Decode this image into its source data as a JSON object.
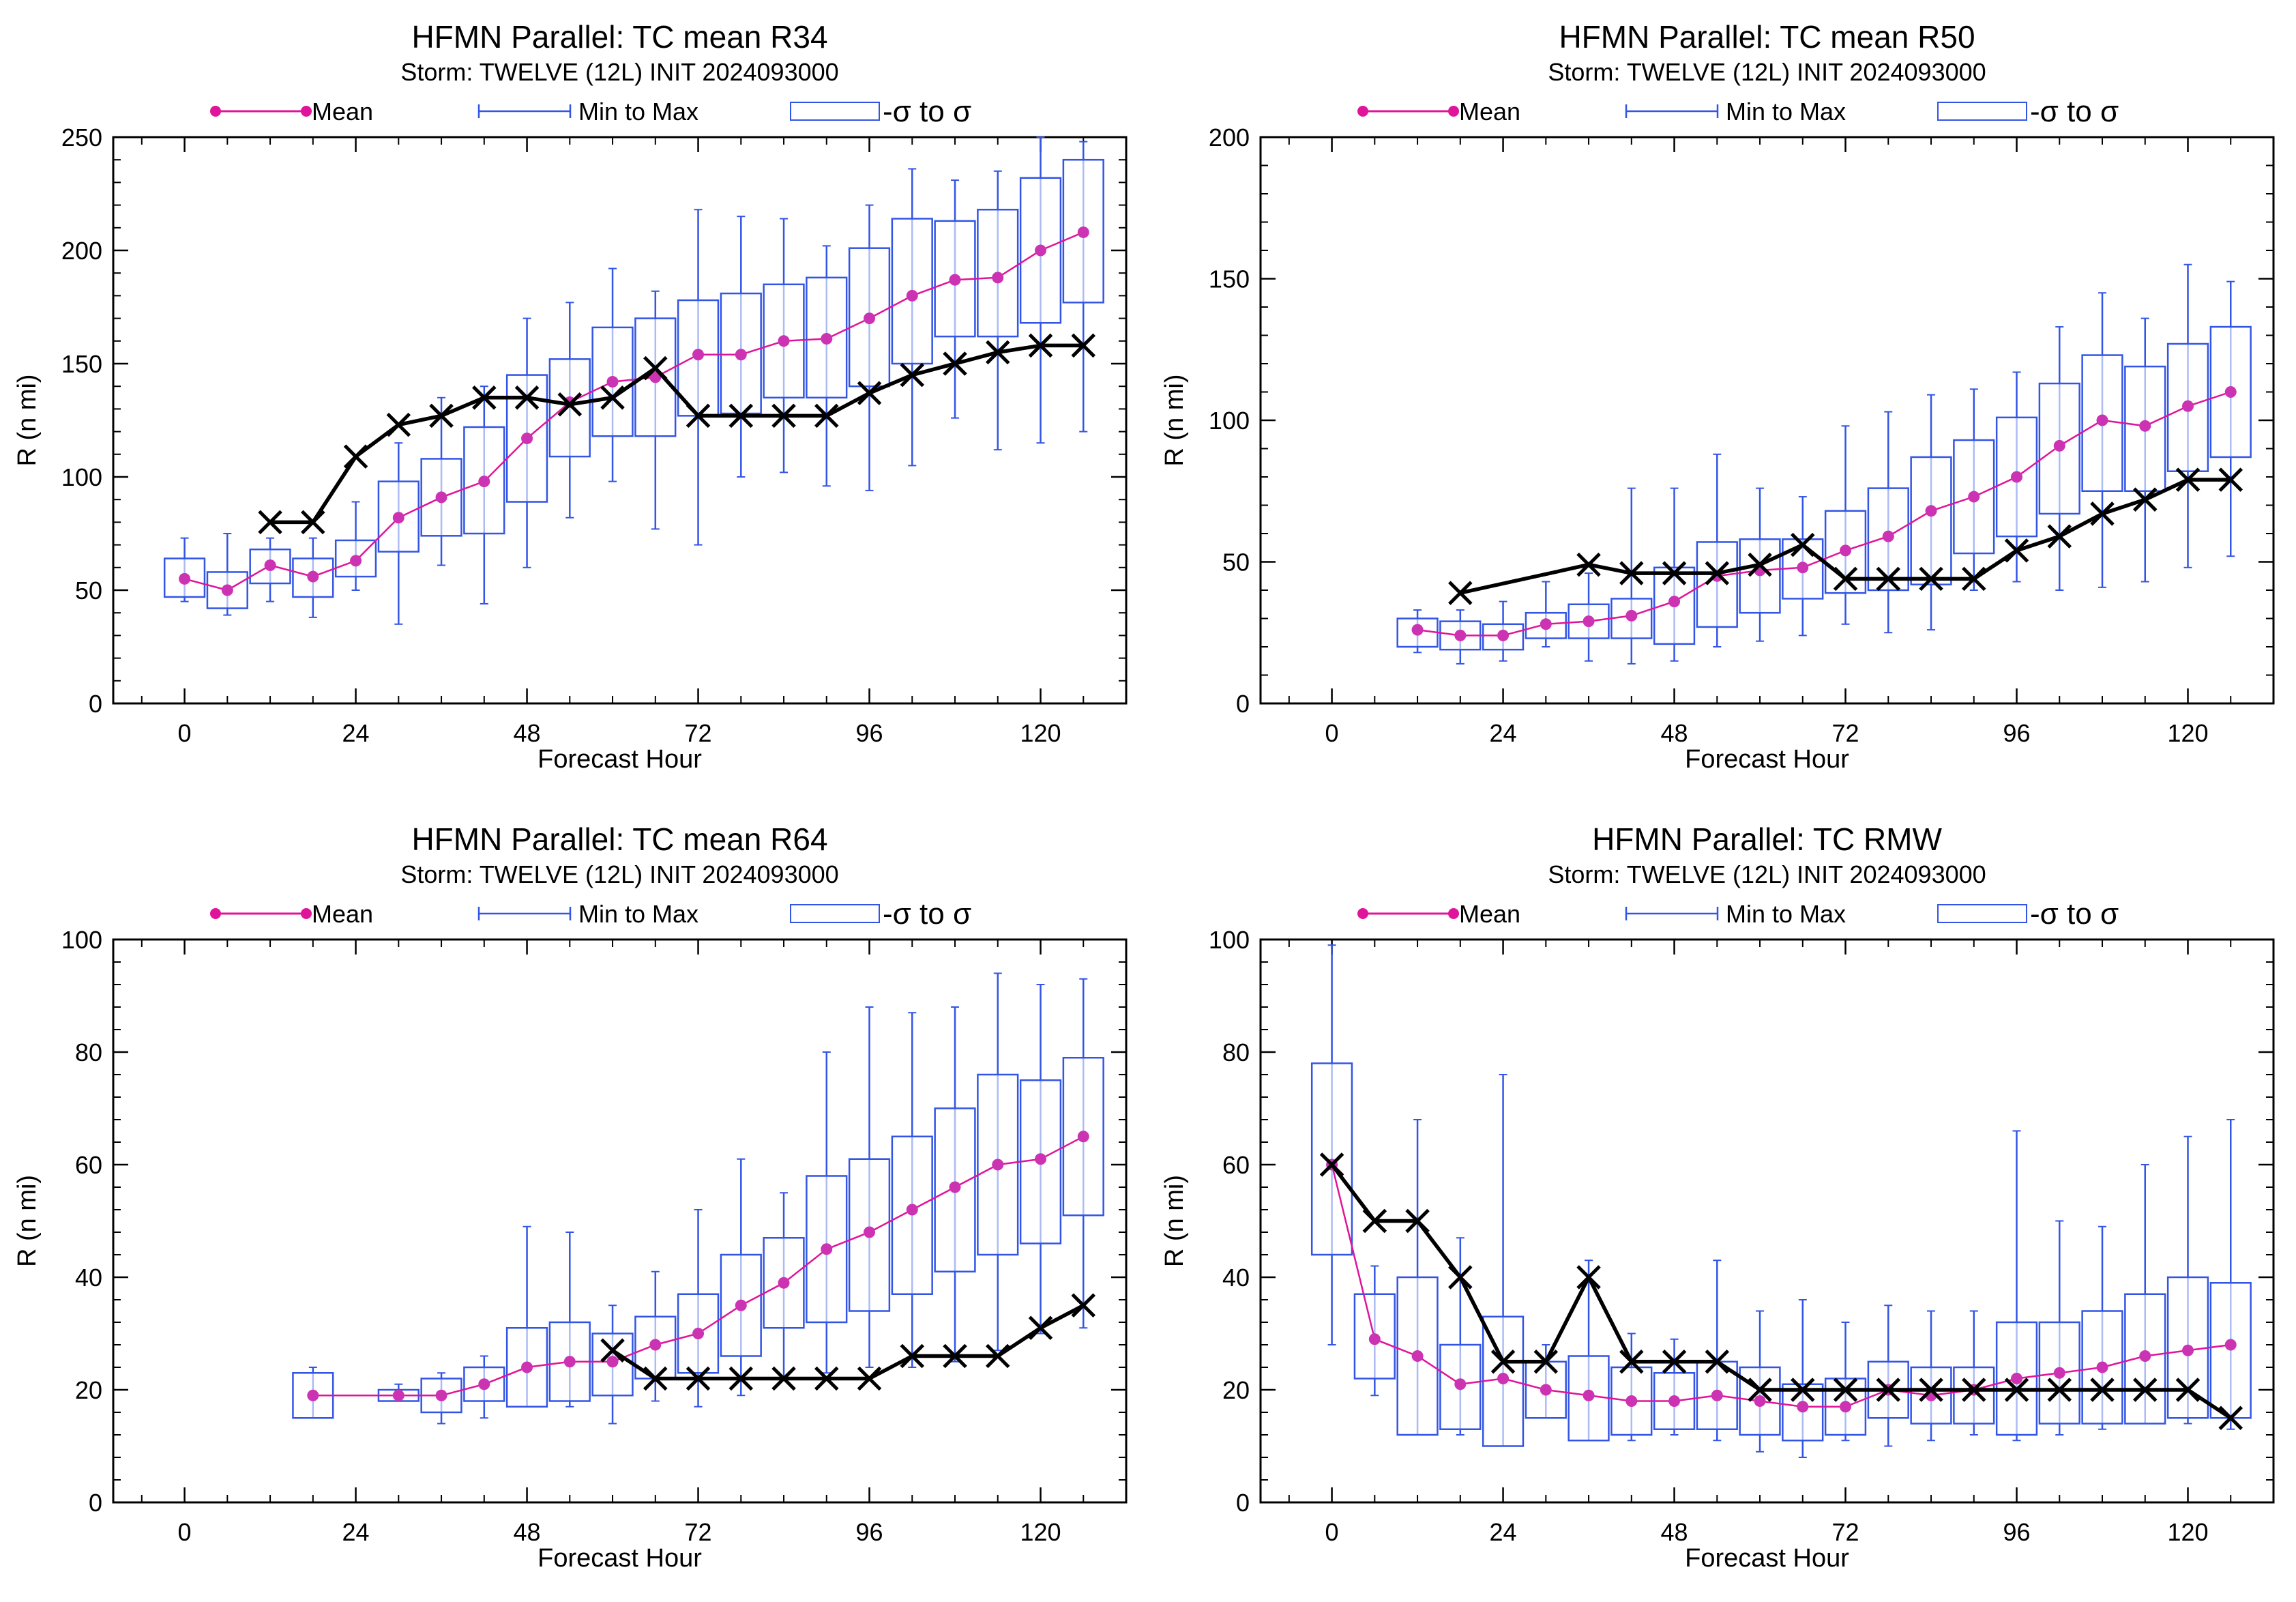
{
  "colors": {
    "mean": "#e0149a",
    "mean_marker": "#cc33b3",
    "minmax": "#3355e6",
    "sigma": "#3355e6",
    "obs": "#000000"
  },
  "chart_data": [
    {
      "type": "line",
      "title": "HFMN Parallel: TC mean R34",
      "subtitle": "Storm: TWELVE (12L) INIT 2024093000",
      "xlabel": "Forecast Hour",
      "ylabel": "R (n mi)",
      "xlim": [
        -10,
        132
      ],
      "ylim": [
        0,
        250
      ],
      "xticks": [
        0,
        24,
        48,
        72,
        96,
        120
      ],
      "yticks": [
        0,
        50,
        100,
        150,
        200,
        250
      ],
      "legend": {
        "mean": "Mean",
        "minmax": "Min to Max",
        "sigma": "-σ to σ",
        "placement": "top"
      },
      "x": [
        0,
        6,
        12,
        18,
        24,
        30,
        36,
        42,
        48,
        54,
        60,
        66,
        72,
        78,
        84,
        90,
        96,
        102,
        108,
        114,
        120,
        126
      ],
      "mean": [
        55,
        50,
        61,
        56,
        63,
        82,
        91,
        98,
        117,
        133,
        142,
        144,
        154,
        154,
        160,
        161,
        170,
        180,
        187,
        188,
        200,
        208
      ],
      "min": [
        45,
        39,
        45,
        38,
        50,
        35,
        61,
        44,
        60,
        82,
        98,
        77,
        70,
        100,
        102,
        96,
        94,
        105,
        126,
        112,
        115,
        120
      ],
      "max": [
        73,
        75,
        73,
        73,
        89,
        115,
        135,
        140,
        170,
        177,
        192,
        182,
        218,
        215,
        214,
        202,
        220,
        236,
        231,
        235,
        250,
        248
      ],
      "sigma_low": [
        47,
        42,
        53,
        47,
        56,
        67,
        74,
        75,
        89,
        109,
        118,
        118,
        127,
        128,
        135,
        135,
        140,
        150,
        162,
        162,
        168,
        177
      ],
      "sigma_high": [
        64,
        58,
        68,
        64,
        72,
        98,
        108,
        122,
        145,
        152,
        166,
        170,
        178,
        181,
        185,
        188,
        201,
        214,
        213,
        218,
        232,
        240
      ],
      "obs_x": [
        12,
        18,
        24,
        30,
        36,
        42,
        48,
        54,
        60,
        66,
        72,
        78,
        84,
        90,
        96,
        102,
        108,
        114,
        120,
        126
      ],
      "obs": [
        80,
        80,
        109,
        123,
        127,
        135,
        135,
        132,
        135,
        148,
        127,
        127,
        127,
        127,
        137,
        145,
        150,
        155,
        158,
        158
      ]
    },
    {
      "type": "line",
      "title": "HFMN Parallel: TC mean R50",
      "subtitle": "Storm: TWELVE (12L) INIT 2024093000",
      "xlabel": "Forecast Hour",
      "ylabel": "R (n mi)",
      "xlim": [
        -10,
        132
      ],
      "ylim": [
        0,
        200
      ],
      "xticks": [
        0,
        24,
        48,
        72,
        96,
        120
      ],
      "yticks": [
        0,
        50,
        100,
        150,
        200
      ],
      "legend": {
        "mean": "Mean",
        "minmax": "Min to Max",
        "sigma": "-σ to σ",
        "placement": "top"
      },
      "x": [
        12,
        18,
        24,
        30,
        36,
        42,
        48,
        54,
        60,
        66,
        72,
        78,
        84,
        90,
        96,
        102,
        108,
        114,
        120,
        126
      ],
      "mean": [
        26,
        24,
        24,
        28,
        29,
        31,
        36,
        45,
        47,
        48,
        54,
        59,
        68,
        73,
        80,
        91,
        100,
        98,
        105,
        110
      ],
      "min": [
        18,
        14,
        15,
        20,
        15,
        14,
        15,
        20,
        22,
        24,
        28,
        25,
        26,
        40,
        43,
        40,
        41,
        43,
        48,
        52
      ],
      "max": [
        33,
        33,
        36,
        43,
        46,
        76,
        76,
        88,
        76,
        73,
        98,
        103,
        109,
        111,
        117,
        133,
        145,
        136,
        155,
        149
      ],
      "sigma_low": [
        20,
        19,
        19,
        23,
        23,
        23,
        21,
        27,
        32,
        37,
        39,
        40,
        42,
        53,
        59,
        67,
        75,
        75,
        82,
        87
      ],
      "sigma_high": [
        30,
        29,
        28,
        32,
        35,
        37,
        48,
        57,
        58,
        58,
        68,
        76,
        87,
        93,
        101,
        113,
        123,
        119,
        127,
        133
      ],
      "obs_x": [
        18,
        36,
        42,
        48,
        54,
        60,
        66,
        72,
        78,
        84,
        90,
        96,
        102,
        108,
        114,
        120,
        126
      ],
      "obs": [
        39,
        49,
        46,
        46,
        46,
        49,
        56,
        44,
        44,
        44,
        44,
        54,
        59,
        67,
        72,
        79,
        79
      ]
    },
    {
      "type": "line",
      "title": "HFMN Parallel: TC mean R64",
      "subtitle": "Storm: TWELVE (12L) INIT 2024093000",
      "xlabel": "Forecast Hour",
      "ylabel": "R (n mi)",
      "xlim": [
        -10,
        132
      ],
      "ylim": [
        0,
        100
      ],
      "xticks": [
        0,
        24,
        48,
        72,
        96,
        120
      ],
      "yticks": [
        0,
        20,
        40,
        60,
        80,
        100
      ],
      "legend": {
        "mean": "Mean",
        "minmax": "Min to Max",
        "sigma": "-σ to σ",
        "placement": "top"
      },
      "x": [
        18,
        30,
        36,
        42,
        48,
        54,
        60,
        66,
        72,
        78,
        84,
        90,
        96,
        102,
        108,
        114,
        120,
        126
      ],
      "mean": [
        19,
        19,
        19,
        21,
        24,
        25,
        25,
        28,
        30,
        35,
        39,
        45,
        48,
        52,
        56,
        60,
        61,
        65
      ],
      "min": [
        15,
        18,
        14,
        15,
        17,
        17,
        14,
        18,
        17,
        19,
        22,
        23,
        24,
        24,
        25,
        27,
        30,
        31
      ],
      "max": [
        24,
        21,
        23,
        26,
        49,
        48,
        35,
        41,
        52,
        61,
        55,
        80,
        88,
        87,
        88,
        94,
        92,
        93
      ],
      "sigma_low": [
        15,
        18,
        16,
        18,
        17,
        18,
        19,
        22,
        23,
        26,
        31,
        32,
        34,
        37,
        41,
        44,
        46,
        51
      ],
      "sigma_high": [
        23,
        20,
        22,
        24,
        31,
        32,
        30,
        33,
        37,
        44,
        47,
        58,
        61,
        65,
        70,
        76,
        75,
        79
      ],
      "obs_x": [
        60,
        66,
        72,
        78,
        84,
        90,
        96,
        102,
        108,
        114,
        120,
        126
      ],
      "obs": [
        27,
        22,
        22,
        22,
        22,
        22,
        22,
        26,
        26,
        26,
        31,
        35
      ]
    },
    {
      "type": "line",
      "title": "HFMN Parallel: TC RMW",
      "subtitle": "Storm: TWELVE (12L) INIT 2024093000",
      "xlabel": "Forecast Hour",
      "ylabel": "R (n mi)",
      "xlim": [
        -10,
        132
      ],
      "ylim": [
        0,
        100
      ],
      "xticks": [
        0,
        24,
        48,
        72,
        96,
        120
      ],
      "yticks": [
        0,
        20,
        40,
        60,
        80,
        100
      ],
      "legend": {
        "mean": "Mean",
        "minmax": "Min to Max",
        "sigma": "-σ to σ",
        "placement": "top"
      },
      "x": [
        0,
        6,
        12,
        18,
        24,
        30,
        36,
        42,
        48,
        54,
        60,
        66,
        72,
        78,
        84,
        90,
        96,
        102,
        108,
        114,
        120,
        126
      ],
      "mean": [
        60,
        29,
        26,
        21,
        22,
        20,
        19,
        18,
        18,
        19,
        18,
        17,
        17,
        20,
        19,
        20,
        22,
        23,
        24,
        26,
        27,
        28
      ],
      "min": [
        28,
        19,
        12,
        12,
        10,
        15,
        11,
        11,
        12,
        11,
        9,
        8,
        11,
        10,
        11,
        12,
        11,
        12,
        13,
        14,
        14,
        13
      ],
      "max": [
        99,
        42,
        68,
        47,
        76,
        28,
        43,
        30,
        29,
        43,
        34,
        36,
        32,
        35,
        34,
        34,
        66,
        50,
        49,
        60,
        65,
        68
      ],
      "sigma_low": [
        44,
        22,
        12,
        13,
        10,
        15,
        11,
        12,
        13,
        13,
        12,
        11,
        12,
        15,
        14,
        14,
        12,
        14,
        14,
        14,
        15,
        15
      ],
      "sigma_high": [
        78,
        37,
        40,
        28,
        33,
        25,
        26,
        24,
        23,
        25,
        24,
        21,
        22,
        25,
        24,
        24,
        32,
        32,
        34,
        37,
        40,
        39
      ],
      "obs_x": [
        0,
        6,
        12,
        18,
        24,
        30,
        36,
        42,
        48,
        54,
        60,
        66,
        72,
        78,
        84,
        90,
        96,
        102,
        108,
        114,
        120,
        126
      ],
      "obs": [
        60,
        50,
        50,
        40,
        25,
        25,
        40,
        25,
        25,
        25,
        20,
        20,
        20,
        20,
        20,
        20,
        20,
        20,
        20,
        20,
        20,
        15
      ]
    }
  ]
}
